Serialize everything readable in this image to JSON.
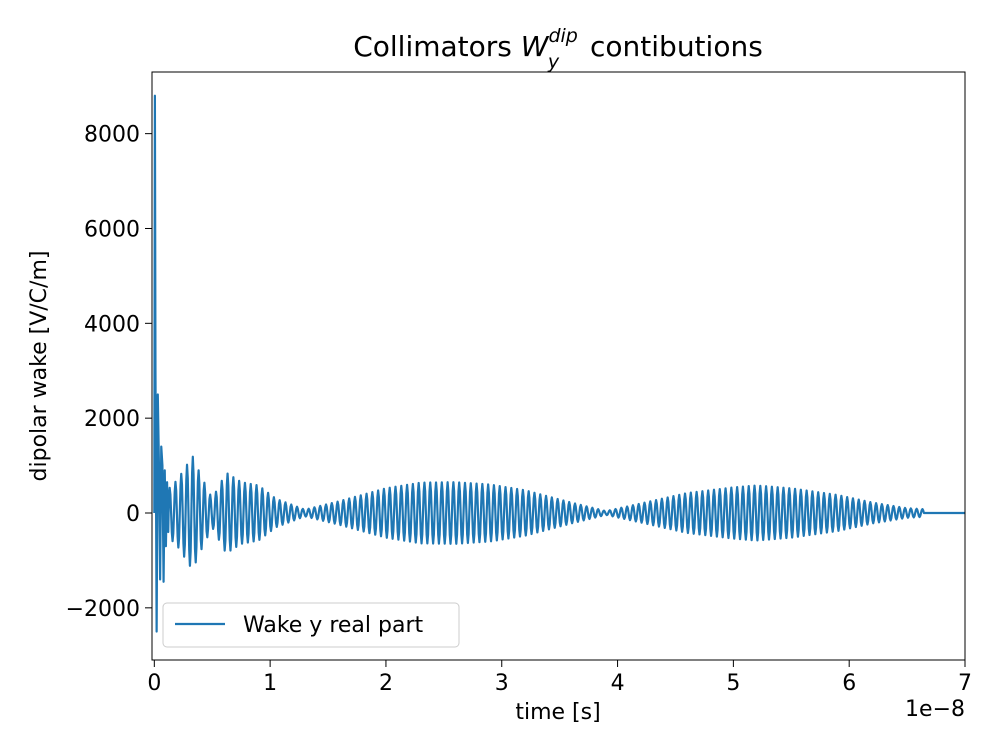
{
  "chart_data": {
    "type": "line",
    "title": {
      "prefix": "Collimators ",
      "symbol": "W",
      "superscript": "dip",
      "subscript": "y",
      "suffix": " contibutions"
    },
    "xlabel": "time [s]",
    "ylabel": "dipolar wake [V/C/m]",
    "x_offset_label": "1e−8",
    "x_scale": 1e-08,
    "xlim": [
      -0.02,
      7.0
    ],
    "ylim": [
      -3100,
      9300
    ],
    "xticks": [
      0,
      1,
      2,
      3,
      4,
      5,
      6,
      7
    ],
    "xtick_labels": [
      "0",
      "1",
      "2",
      "3",
      "4",
      "5",
      "6",
      "7"
    ],
    "yticks": [
      -2000,
      0,
      2000,
      4000,
      6000,
      8000
    ],
    "ytick_labels": [
      "−2000",
      "0",
      "2000",
      "4000",
      "6000",
      "8000"
    ],
    "legend_location": "lower-left",
    "series": [
      {
        "name": "Wake y real part",
        "color": "#1f77b4",
        "carrier_period": 0.05,
        "x_end": 6.65,
        "x_max": 7.0,
        "spike_points": [
          [
            0.0,
            0
          ],
          [
            0.005,
            8800
          ],
          [
            0.01,
            3000
          ],
          [
            0.02,
            -2500
          ],
          [
            0.03,
            2500
          ],
          [
            0.04,
            1000
          ],
          [
            0.05,
            -1400
          ],
          [
            0.06,
            1400
          ],
          [
            0.07,
            1000
          ],
          [
            0.08,
            -1450
          ],
          [
            0.09,
            900
          ],
          [
            0.1,
            -700
          ],
          [
            0.11,
            650
          ],
          [
            0.12,
            -400
          ]
        ],
        "envelope": [
          [
            0.12,
            500
          ],
          [
            0.2,
            700
          ],
          [
            0.33,
            1200
          ],
          [
            0.4,
            800
          ],
          [
            0.5,
            300
          ],
          [
            0.62,
            850
          ],
          [
            0.75,
            650
          ],
          [
            0.9,
            580
          ],
          [
            1.05,
            300
          ],
          [
            1.3,
            70
          ],
          [
            1.6,
            250
          ],
          [
            2.0,
            520
          ],
          [
            2.3,
            640
          ],
          [
            2.6,
            650
          ],
          [
            2.9,
            600
          ],
          [
            3.2,
            480
          ],
          [
            3.6,
            220
          ],
          [
            3.9,
            40
          ],
          [
            4.2,
            200
          ],
          [
            4.6,
            420
          ],
          [
            5.0,
            540
          ],
          [
            5.2,
            580
          ],
          [
            5.5,
            520
          ],
          [
            5.9,
            380
          ],
          [
            6.2,
            220
          ],
          [
            6.5,
            100
          ],
          [
            6.65,
            80
          ]
        ]
      }
    ]
  }
}
